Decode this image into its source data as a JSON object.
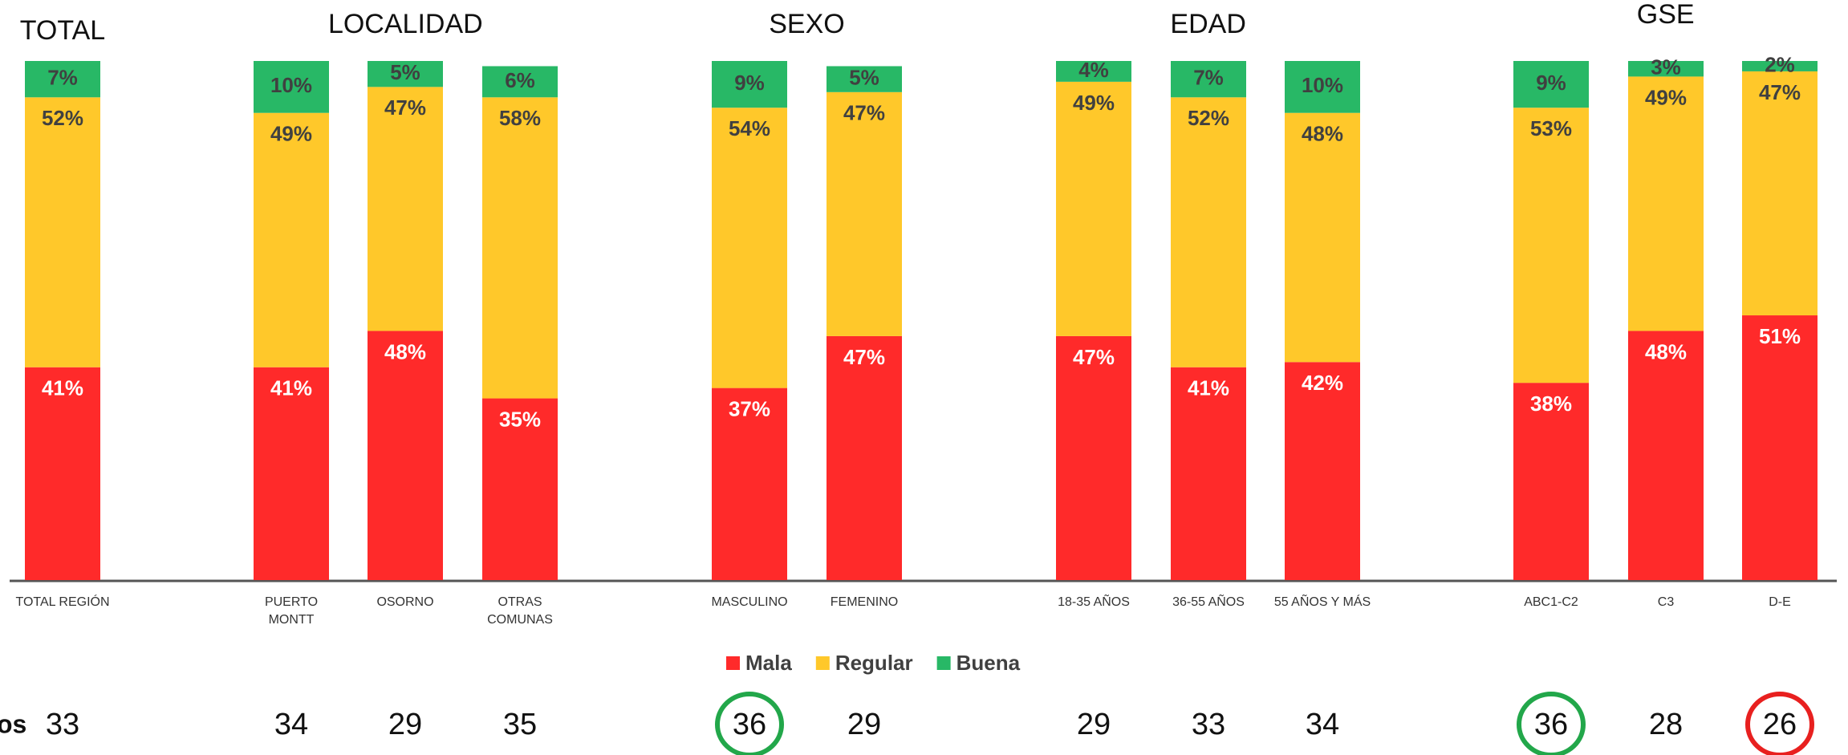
{
  "chart_data": {
    "type": "stacked_bar",
    "groups": [
      {
        "name": "TOTAL",
        "members": [
          0
        ]
      },
      {
        "name": "LOCALIDAD",
        "members": [
          1,
          2,
          3
        ]
      },
      {
        "name": "SEXO",
        "members": [
          4,
          5
        ]
      },
      {
        "name": "EDAD",
        "members": [
          6,
          7,
          8
        ]
      },
      {
        "name": "GSE",
        "members": [
          9,
          10,
          11
        ]
      }
    ],
    "categories": [
      "TOTAL REGIÓN",
      "PUERTO MONTT",
      "OSORNO",
      "OTRAS COMUNAS",
      "MASCULINO",
      "FEMENINO",
      "18-35 AÑOS",
      "36-55 AÑOS",
      "55 AÑOS Y MÁS",
      "ABC1-C2",
      "C3",
      "D-E"
    ],
    "ylim": [
      0,
      100
    ],
    "series": [
      {
        "name": "Mala",
        "color": "#ff2a2a",
        "values": [
          41,
          41,
          48,
          35,
          37,
          47,
          47,
          41,
          42,
          38,
          48,
          51
        ],
        "value_labels": [
          "41%",
          "41%",
          "48%",
          "35%",
          "37%",
          "47%",
          "47%",
          "41%",
          "42%",
          "38%",
          "48%",
          "51%"
        ]
      },
      {
        "name": "Regular",
        "color": "#ffc82a",
        "values": [
          52,
          49,
          47,
          58,
          54,
          47,
          49,
          52,
          48,
          53,
          49,
          47
        ],
        "value_labels": [
          "52%",
          "49%",
          "47%",
          "58%",
          "54%",
          "47%",
          "49%",
          "52%",
          "48%",
          "53%",
          "49%",
          "47%"
        ]
      },
      {
        "name": "Buena",
        "color": "#28b866",
        "values": [
          7,
          10,
          5,
          6,
          9,
          5,
          4,
          7,
          10,
          9,
          3,
          2
        ],
        "value_labels": [
          "7%",
          "10%",
          "5%",
          "6%",
          "9%",
          "5%",
          "4%",
          "7%",
          "10%",
          "9%",
          "3%",
          "2%"
        ]
      }
    ],
    "legend": "bottom",
    "row_label": "os",
    "row_values": [
      33,
      34,
      29,
      35,
      36,
      29,
      29,
      33,
      34,
      36,
      28,
      26
    ],
    "highlights": [
      {
        "index": 4,
        "color": "#22a74a"
      },
      {
        "index": 9,
        "color": "#22a74a"
      },
      {
        "index": 11,
        "color": "#e8201f"
      }
    ]
  }
}
